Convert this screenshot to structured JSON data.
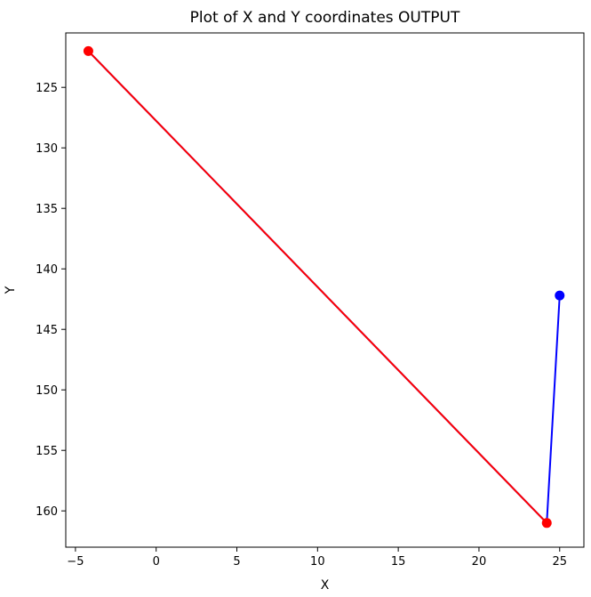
{
  "chart_data": {
    "type": "line",
    "title": "Plot of X and Y coordinates OUTPUT",
    "xlabel": "X",
    "ylabel": "Y",
    "xlim": [
      -5.6,
      26.5
    ],
    "ylim": [
      163.0,
      120.5
    ],
    "y_inverted": true,
    "grid": false,
    "xticks": [
      -5,
      0,
      5,
      10,
      15,
      20,
      25
    ],
    "yticks": [
      125,
      130,
      135,
      140,
      145,
      150,
      155,
      160
    ],
    "series": [
      {
        "color": "#0000ff",
        "marker": "circle",
        "x": [
          25.0,
          24.2,
          -4.2
        ],
        "y": [
          142.2,
          161.0,
          122.0
        ]
      },
      {
        "color": "#ff0000",
        "marker": "circle",
        "x": [
          24.2,
          -4.2
        ],
        "y": [
          161.0,
          122.0
        ]
      }
    ]
  }
}
